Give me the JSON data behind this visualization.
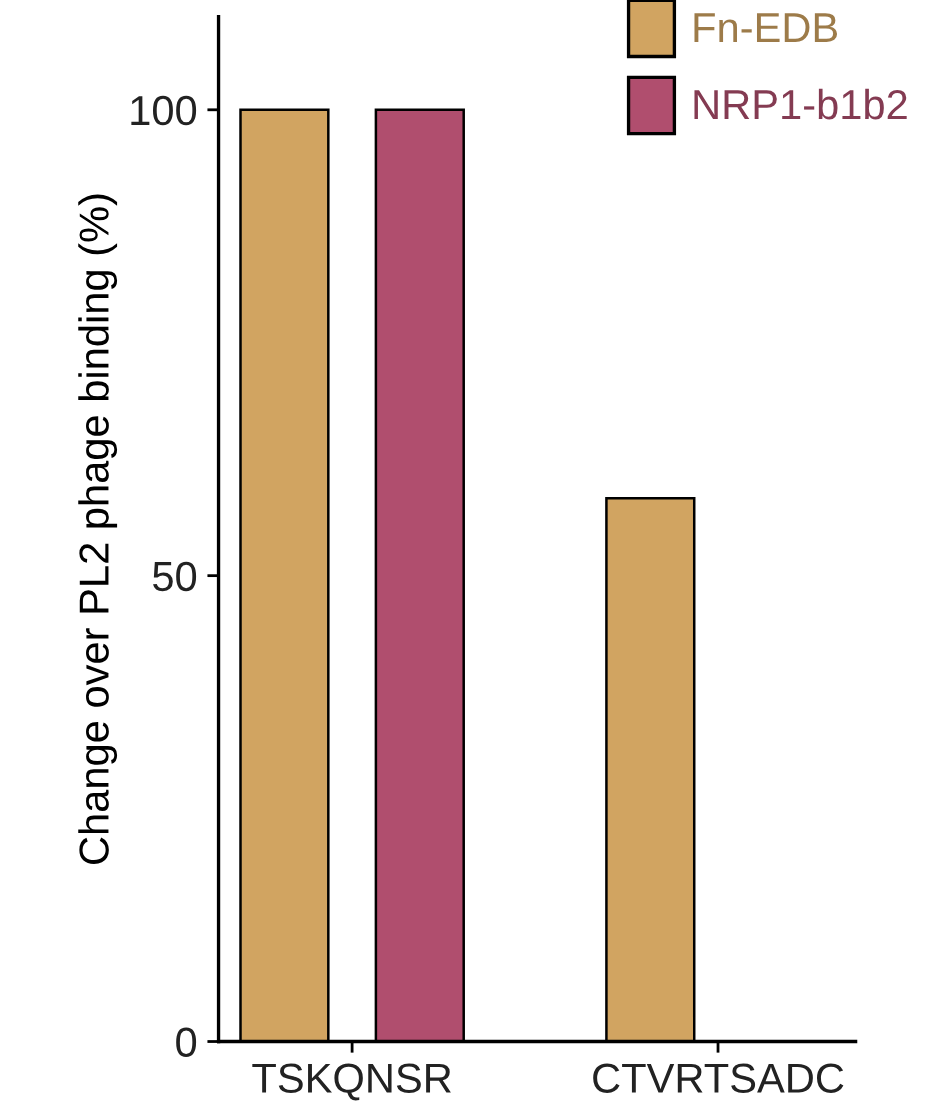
{
  "chart_data": {
    "type": "bar",
    "ylabel": "Change over PL2 phage binding (%)",
    "categories": [
      "TSKQNSR",
      "CTVRTSADC"
    ],
    "series": [
      {
        "name": "Fn-EDB",
        "color": "#d1a461",
        "values": [
          100,
          58.3
        ]
      },
      {
        "name": "NRP1-b1b2",
        "color": "#b04e6e",
        "values": [
          100,
          null
        ]
      }
    ],
    "ylim": [
      0,
      110
    ],
    "yticks": [
      0,
      50,
      100
    ],
    "grid": false,
    "legend": "top right"
  }
}
